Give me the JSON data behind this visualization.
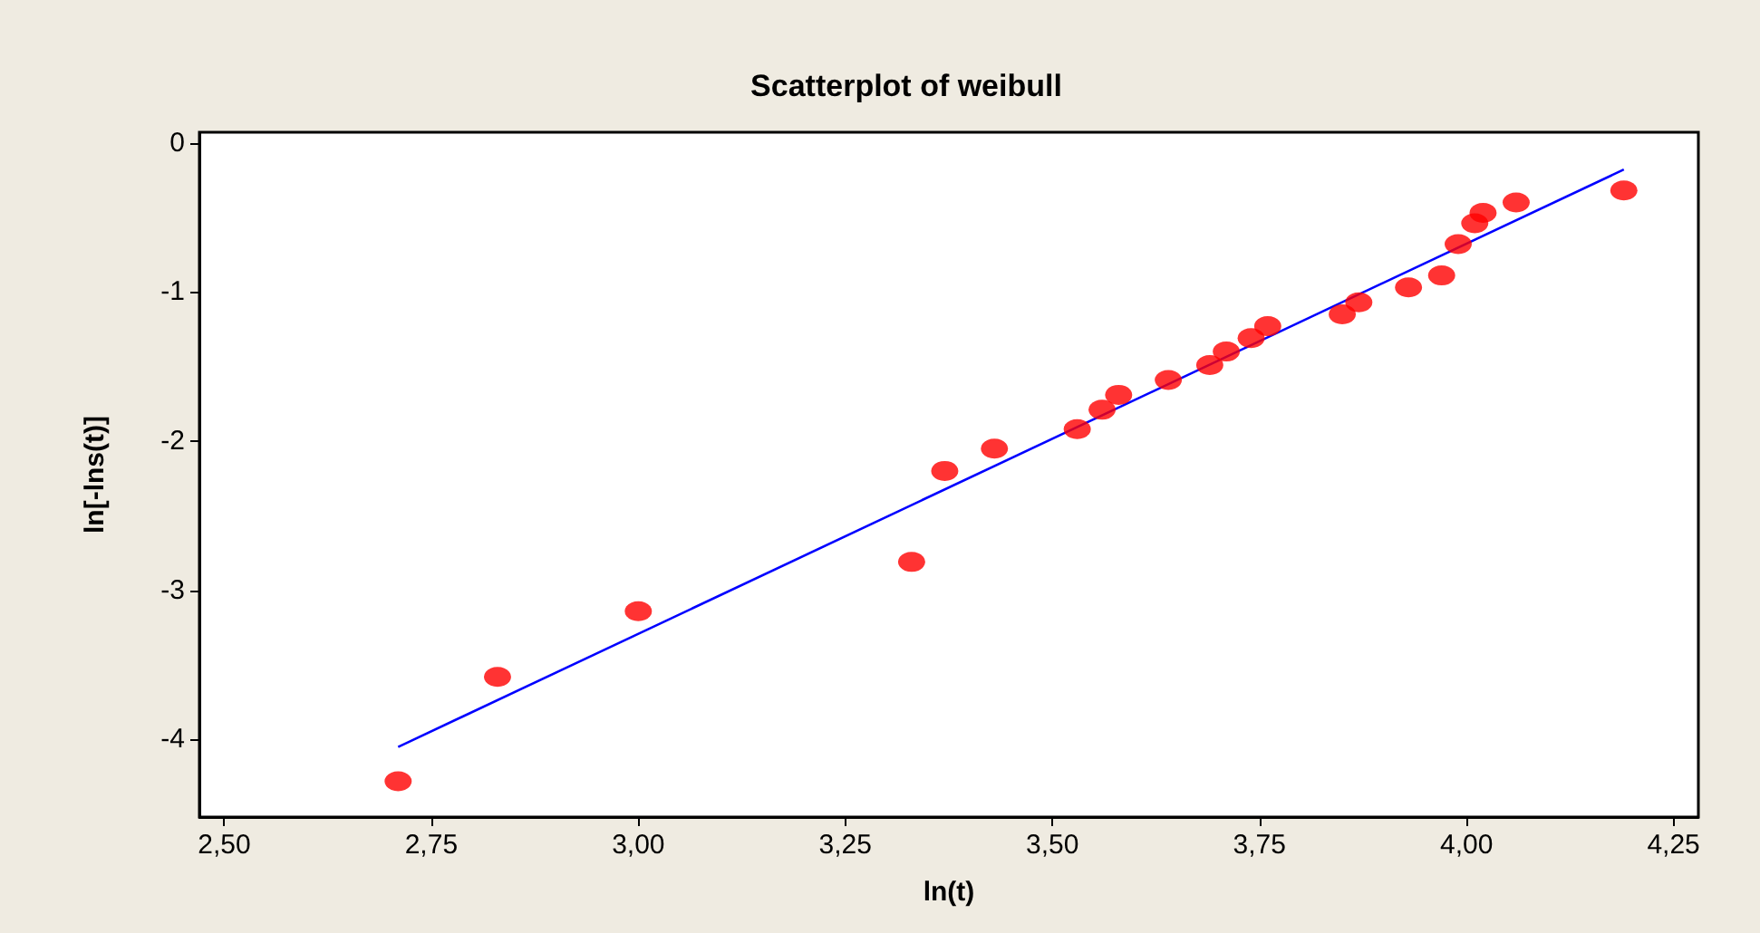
{
  "chart_data": {
    "type": "scatter",
    "title": "Scatterplot of weibull",
    "xlabel": "ln(t)",
    "ylabel": "ln[-lns(t)]",
    "xlim": [
      2.47,
      4.28
    ],
    "ylim": [
      -4.52,
      0.07
    ],
    "xticks": [
      {
        "value": 2.5,
        "label": "2,50"
      },
      {
        "value": 2.75,
        "label": "2,75"
      },
      {
        "value": 3,
        "label": "3,00"
      },
      {
        "value": 3.25,
        "label": "3,25"
      },
      {
        "value": 3.5,
        "label": "3,50"
      },
      {
        "value": 3.75,
        "label": "3,75"
      },
      {
        "value": 4,
        "label": "4,00"
      },
      {
        "value": 4.25,
        "label": "4,25"
      }
    ],
    "yticks": [
      0,
      -1,
      -2,
      -3,
      -4
    ],
    "marker": "circle",
    "series": [
      {
        "color": "#ff0000",
        "x": [
          2.71,
          2.83,
          3.0,
          3.33,
          3.37,
          3.43,
          3.53,
          3.56,
          3.58,
          3.64,
          3.69,
          3.71,
          3.74,
          3.76,
          3.85,
          3.87,
          3.93,
          3.97,
          3.99,
          4.01,
          4.02,
          4.06,
          4.19
        ],
        "values": [
          -4.28,
          -3.58,
          -3.14,
          -2.81,
          -2.2,
          -2.05,
          -1.92,
          -1.79,
          -1.69,
          -1.59,
          -1.49,
          -1.4,
          -1.31,
          -1.23,
          -1.15,
          -1.07,
          -0.97,
          -0.89,
          -0.68,
          -0.54,
          -0.47,
          -0.4,
          -0.32
        ]
      },
      {
        "type": "line",
        "color": "#0000ff",
        "marker": "none",
        "x": [
          2.71,
          4.19
        ],
        "values": [
          -4.05,
          -0.18
        ]
      }
    ]
  }
}
